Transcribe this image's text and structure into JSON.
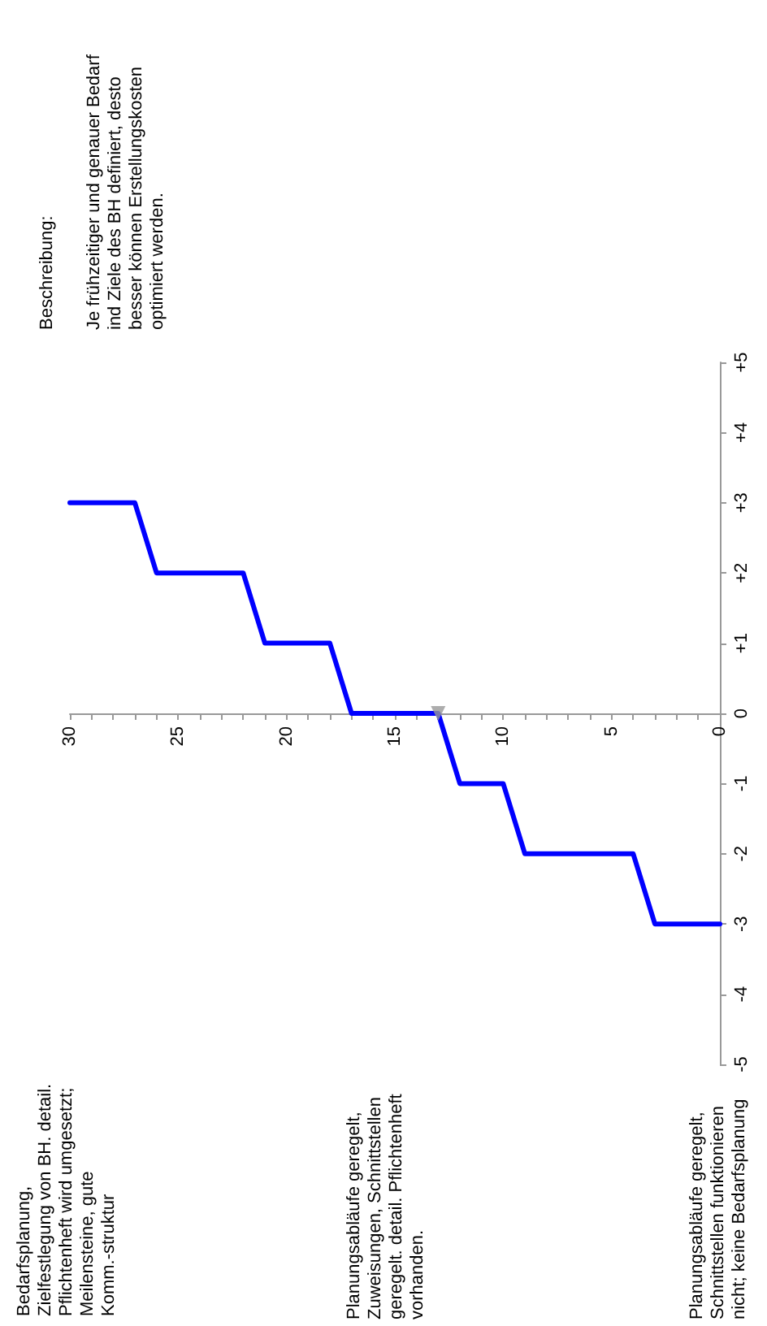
{
  "chart_data": {
    "type": "line",
    "annotations": [
      "Beschreibung:",
      "Je frühzeitiger und genauer Bedarf\nind Ziele des BH definiert, desto\nbesser können Erstellungskosten\noptimiert werden.",
      "Bedarfsplanung,\nZielfestlegung von BH. detail.\nPflichtenheft wird umgesetzt;\nMeilensteine, gute\nKomm.-struktur",
      "Planungsabläufe geregelt,\nZuweisungen, Schnittstellen\ngeregelt. detail. Pflichtenheft\nvorhanden.",
      "Planungsabläufe geregelt,\nSchnittstellen funktionieren\nnicht; keine Bedarfsplanung"
    ],
    "series": [
      {
        "color": "#0000ff",
        "marker": "none",
        "line_style": "solid",
        "x": [
          0,
          3,
          4,
          9,
          10,
          12,
          13,
          17,
          18,
          21,
          22,
          26,
          27,
          30
        ],
        "values": [
          -3,
          -3,
          -2,
          -2,
          -1,
          -1,
          0,
          0,
          1,
          1,
          2,
          2,
          3,
          3
        ]
      },
      {
        "type": "scatter",
        "color": "#999999",
        "marker": "triangle",
        "x": [
          13
        ],
        "values": [
          0
        ]
      }
    ],
    "xlim": [
      30,
      0
    ],
    "xticks": [
      0,
      {
        "value": 1,
        "label": null
      },
      {
        "value": 2,
        "label": null
      },
      {
        "value": 3,
        "label": null
      },
      {
        "value": 4,
        "label": null
      },
      5,
      {
        "value": 6,
        "label": null
      },
      {
        "value": 7,
        "label": null
      },
      {
        "value": 8,
        "label": null
      },
      {
        "value": 9,
        "label": null
      },
      10,
      {
        "value": 11,
        "label": null
      },
      {
        "value": 12,
        "label": null
      },
      {
        "value": 13,
        "label": null
      },
      {
        "value": 14,
        "label": null
      },
      15,
      {
        "value": 16,
        "label": null
      },
      {
        "value": 17,
        "label": null
      },
      {
        "value": 18,
        "label": null
      },
      {
        "value": 19,
        "label": null
      },
      20,
      {
        "value": 21,
        "label": null
      },
      {
        "value": 22,
        "label": null
      },
      {
        "value": 23,
        "label": null
      },
      {
        "value": 24,
        "label": null
      },
      25,
      {
        "value": 26,
        "label": null
      },
      {
        "value": 27,
        "label": null
      },
      {
        "value": 28,
        "label": null
      },
      {
        "value": 29,
        "label": null
      },
      30
    ],
    "ylim": [
      -5,
      5
    ],
    "yticks": [
      -5,
      -4,
      -3,
      -2,
      -1,
      0,
      {
        "value": 1,
        "label": "+1"
      },
      {
        "value": 2,
        "label": "+2"
      },
      {
        "value": 3,
        "label": "+3"
      },
      {
        "value": 4,
        "label": "+4"
      },
      {
        "value": 5,
        "label": "+5"
      }
    ],
    "grid": false
  }
}
